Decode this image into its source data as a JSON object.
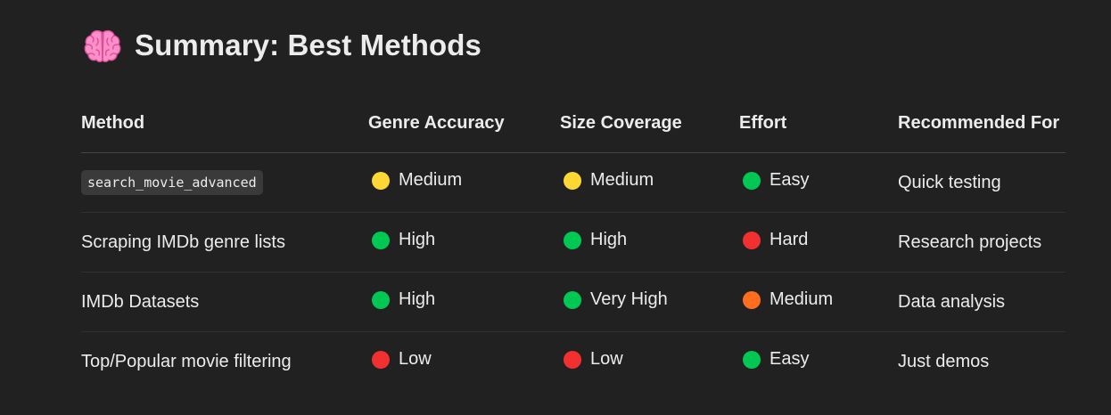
{
  "heading": {
    "icon": "brain-emoji-icon",
    "title": "Summary: Best Methods"
  },
  "colors": {
    "background": "#212121",
    "text": "#ececec",
    "yellow": "#fdd835",
    "green": "#00c853",
    "red": "#f23030",
    "orange": "#ff6d1f"
  },
  "table": {
    "headers": [
      "Method",
      "Genre Accuracy",
      "Size Coverage",
      "Effort",
      "Recommended For"
    ],
    "rows": [
      {
        "method": "search_movie_advanced",
        "method_is_code": true,
        "genre": {
          "label": "Medium",
          "status": "yellow",
          "icon": "yellow-circle-icon"
        },
        "size": {
          "label": "Medium",
          "status": "yellow",
          "icon": "yellow-circle-icon"
        },
        "effort": {
          "label": "Easy",
          "status": "green",
          "icon": "green-circle-icon"
        },
        "recommended": "Quick testing"
      },
      {
        "method": "Scraping IMDb genre lists",
        "method_is_code": false,
        "genre": {
          "label": "High",
          "status": "green",
          "icon": "green-circle-icon"
        },
        "size": {
          "label": "High",
          "status": "green",
          "icon": "green-circle-icon"
        },
        "effort": {
          "label": "Hard",
          "status": "red",
          "icon": "red-circle-icon"
        },
        "recommended": "Research projects"
      },
      {
        "method": "IMDb Datasets",
        "method_is_code": false,
        "genre": {
          "label": "High",
          "status": "green",
          "icon": "green-circle-icon"
        },
        "size": {
          "label": "Very High",
          "status": "green",
          "icon": "green-circle-icon"
        },
        "effort": {
          "label": "Medium",
          "status": "orange",
          "icon": "orange-circle-icon"
        },
        "recommended": "Data analysis"
      },
      {
        "method": "Top/Popular movie filtering",
        "method_is_code": false,
        "genre": {
          "label": "Low",
          "status": "red",
          "icon": "red-circle-icon"
        },
        "size": {
          "label": "Low",
          "status": "red",
          "icon": "red-circle-icon"
        },
        "effort": {
          "label": "Easy",
          "status": "green",
          "icon": "green-circle-icon"
        },
        "recommended": "Just demos"
      }
    ]
  }
}
